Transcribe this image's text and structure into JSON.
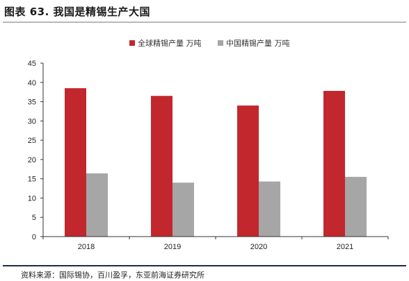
{
  "figure": {
    "title": "图表 63. 我国是精锡生产大国",
    "source": "资料来源：国际锡协，百川盈孚，东亚前海证券研究所"
  },
  "colors": {
    "series_global": "#c1272d",
    "series_china": "#a6a6a6",
    "axis": "#333333",
    "rule_bottom": "#1f2a44"
  },
  "chart_data": {
    "type": "bar",
    "categories": [
      "2018",
      "2019",
      "2020",
      "2021"
    ],
    "series": [
      {
        "name": "全球精锡产量 万吨",
        "values": [
          38.5,
          36.5,
          34.0,
          37.8
        ]
      },
      {
        "name": "中国精锡产量 万吨",
        "values": [
          16.4,
          14.0,
          14.3,
          15.5
        ]
      }
    ],
    "yticks": [
      "0",
      "5",
      "10",
      "15",
      "20",
      "25",
      "30",
      "35",
      "40",
      "45"
    ],
    "ylim": [
      0,
      45
    ],
    "grid": false,
    "legend_position": "top-center"
  }
}
